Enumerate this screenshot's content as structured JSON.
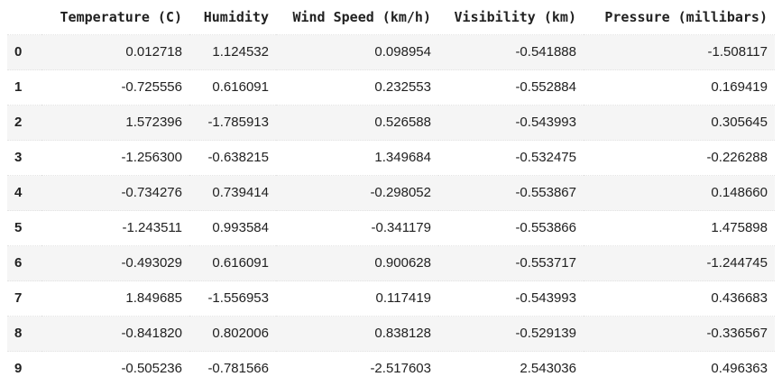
{
  "table": {
    "index_header": "",
    "columns": [
      "Temperature (C)",
      "Humidity",
      "Wind Speed (km/h)",
      "Visibility (km)",
      "Pressure (millibars)"
    ],
    "rows": [
      {
        "index": "0",
        "values": [
          "0.012718",
          "1.124532",
          "0.098954",
          "-0.541888",
          "-1.508117"
        ]
      },
      {
        "index": "1",
        "values": [
          "-0.725556",
          "0.616091",
          "0.232553",
          "-0.552884",
          "0.169419"
        ]
      },
      {
        "index": "2",
        "values": [
          "1.572396",
          "-1.785913",
          "0.526588",
          "-0.543993",
          "0.305645"
        ]
      },
      {
        "index": "3",
        "values": [
          "-1.256300",
          "-0.638215",
          "1.349684",
          "-0.532475",
          "-0.226288"
        ]
      },
      {
        "index": "4",
        "values": [
          "-0.734276",
          "0.739414",
          "-0.298052",
          "-0.553867",
          "0.148660"
        ]
      },
      {
        "index": "5",
        "values": [
          "-1.243511",
          "0.993584",
          "-0.341179",
          "-0.553866",
          "1.475898"
        ]
      },
      {
        "index": "6",
        "values": [
          "-0.493029",
          "0.616091",
          "0.900628",
          "-0.553717",
          "-1.244745"
        ]
      },
      {
        "index": "7",
        "values": [
          "1.849685",
          "-1.556953",
          "0.117419",
          "-0.543993",
          "0.436683"
        ]
      },
      {
        "index": "8",
        "values": [
          "-0.841820",
          "0.802006",
          "0.838128",
          "-0.529139",
          "-0.336567"
        ]
      },
      {
        "index": "9",
        "values": [
          "-0.505236",
          "-0.781566",
          "-2.517603",
          "2.543036",
          "0.496363"
        ]
      }
    ]
  }
}
